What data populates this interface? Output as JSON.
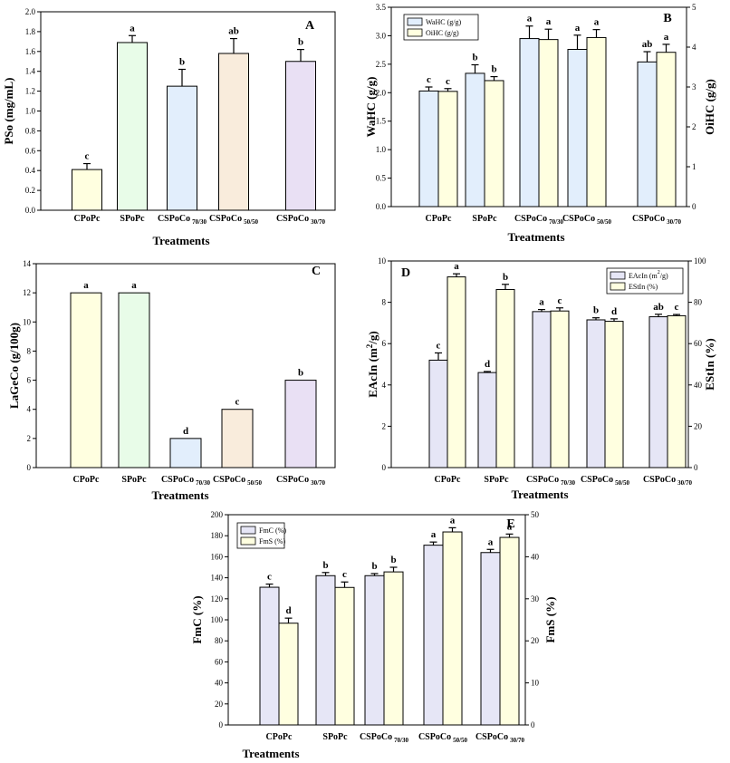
{
  "chart_data": [
    {
      "panel": "A",
      "type": "bar",
      "categories": [
        "CPoPc",
        "SPoPc",
        "CSPoCo 70/30",
        "CSPoCo 50/50",
        "CSPoCo 30/70"
      ],
      "xlabel": "Treatments",
      "ylabel": "PSo (mg/mL)",
      "ylim": [
        0,
        2.0
      ],
      "yticks": [
        "0.0",
        "0.2",
        "0.4",
        "0.6",
        "0.8",
        "1.0",
        "1.2",
        "1.4",
        "1.6",
        "1.8",
        "2.0"
      ],
      "series": [
        {
          "values": [
            0.41,
            1.69,
            1.25,
            1.58,
            1.5
          ],
          "errors": [
            0.06,
            0.07,
            0.17,
            0.15,
            0.12
          ],
          "letters": [
            "c",
            "a",
            "b",
            "ab",
            "b"
          ],
          "colors": [
            "#ffffe0",
            "#e8fce8",
            "#e2eefc",
            "#f9ecdc",
            "#e9e0f4"
          ]
        }
      ]
    },
    {
      "panel": "B",
      "type": "bar",
      "categories": [
        "CPoPc",
        "SPoPc",
        "CSPoCo 70/30",
        "CSPoCo 50/50",
        "CSPoCo 30/70"
      ],
      "xlabel": "Treatments",
      "ylabel": "WaHC (g/g)",
      "y2label": "OiHC (g/g)",
      "ylim": [
        0,
        3.5
      ],
      "y2lim": [
        0,
        5
      ],
      "yticks": [
        "0.0",
        "0.5",
        "1.0",
        "1.5",
        "2.0",
        "2.5",
        "3.0",
        "3.5"
      ],
      "y2ticks": [
        "0",
        "1",
        "2",
        "3",
        "4",
        "5"
      ],
      "legend": [
        "WaHC (g/g)",
        "OiHC (g/g)"
      ],
      "series": [
        {
          "name": "WaHC (g/g)",
          "axis": "left",
          "color": "#e2eefc",
          "values": [
            2.03,
            2.34,
            2.95,
            2.76,
            2.54
          ],
          "errors": [
            0.07,
            0.15,
            0.22,
            0.25,
            0.18
          ],
          "letters": [
            "c",
            "b",
            "a",
            "a",
            "ab"
          ]
        },
        {
          "name": "OiHC (g/g)",
          "axis": "right",
          "color": "#ffffe0",
          "values": [
            2.89,
            3.16,
            4.19,
            4.24,
            3.87
          ],
          "errors": [
            0.07,
            0.1,
            0.26,
            0.2,
            0.2
          ],
          "letters": [
            "c",
            "b",
            "a",
            "a",
            "a"
          ]
        }
      ]
    },
    {
      "panel": "C",
      "type": "bar",
      "categories": [
        "CPoPc",
        "SPoPc",
        "CSPoCo 70/30",
        "CSPoCo 50/50",
        "CSPoCo 30/70"
      ],
      "xlabel": "Treatments",
      "ylabel": "LaGeCo (g/100g)",
      "ylim": [
        0,
        14
      ],
      "yticks": [
        "0",
        "2",
        "4",
        "6",
        "8",
        "10",
        "12",
        "14"
      ],
      "series": [
        {
          "values": [
            12,
            12,
            2,
            4,
            6
          ],
          "errors": [
            0,
            0,
            0,
            0,
            0
          ],
          "letters": [
            "a",
            "a",
            "d",
            "c",
            "b"
          ],
          "colors": [
            "#ffffe0",
            "#e8fce8",
            "#e2eefc",
            "#f9ecdc",
            "#e9e0f4"
          ]
        }
      ]
    },
    {
      "panel": "D",
      "type": "bar",
      "categories": [
        "CPoPc",
        "SPoPc",
        "CSPoCo 70/30",
        "CSPoCo 50/50",
        "CSPoCo 30/70"
      ],
      "xlabel": "Treatments",
      "ylabel": "EAcIn (m²/g)",
      "y2label": "EStIn (%)",
      "ylim": [
        0,
        10
      ],
      "y2lim": [
        0,
        100
      ],
      "yticks": [
        "0",
        "2",
        "4",
        "6",
        "8",
        "10"
      ],
      "y2ticks": [
        "0",
        "20",
        "40",
        "60",
        "80",
        "100"
      ],
      "legend": [
        "EAcIn (m²/g)",
        "EStIn (%)"
      ],
      "series": [
        {
          "name": "EAcIn (m²/g)",
          "axis": "left",
          "color": "#e6e6f6",
          "values": [
            5.2,
            4.6,
            7.55,
            7.15,
            7.3
          ],
          "errors": [
            0.35,
            0.05,
            0.1,
            0.1,
            0.12
          ],
          "letters": [
            "c",
            "d",
            "a",
            "b",
            "ab"
          ]
        },
        {
          "name": "EStIn (%)",
          "axis": "right",
          "color": "#ffffe0",
          "values": [
            92.3,
            86.2,
            75.8,
            70.8,
            73.5
          ],
          "errors": [
            1.5,
            2.5,
            1.5,
            1.2,
            0.6
          ],
          "letters": [
            "a",
            "b",
            "c",
            "d",
            "c"
          ]
        }
      ]
    },
    {
      "panel": "E",
      "type": "bar",
      "categories": [
        "CPoPc",
        "SPoPc",
        "CSPoCo 70/30",
        "CSPoCo 50/50",
        "CSPoCo 30/70"
      ],
      "xlabel": "Treatments",
      "ylabel": "FmC (%)",
      "y2label": "FmS (%)",
      "ylim": [
        0,
        200
      ],
      "y2lim": [
        0,
        50
      ],
      "yticks": [
        "0",
        "20",
        "40",
        "60",
        "80",
        "100",
        "120",
        "140",
        "160",
        "180",
        "200"
      ],
      "y2ticks": [
        "0",
        "10",
        "20",
        "30",
        "40",
        "50"
      ],
      "legend": [
        "FmC (%)",
        "FmS (%)"
      ],
      "series": [
        {
          "name": "FmC (%)",
          "axis": "left",
          "color": "#e6e6f6",
          "values": [
            131,
            142,
            142,
            171,
            164
          ],
          "errors": [
            3,
            3,
            2,
            3,
            3
          ],
          "letters": [
            "c",
            "b",
            "b",
            "a",
            "a"
          ]
        },
        {
          "name": "FmS (%)",
          "axis": "right",
          "color": "#ffffe0",
          "values": [
            24.2,
            32.7,
            36.4,
            45.9,
            44.6
          ],
          "errors": [
            1.2,
            1.3,
            1.1,
            1.0,
            0.8
          ],
          "letters": [
            "d",
            "c",
            "b",
            "a",
            "a"
          ]
        }
      ]
    }
  ]
}
